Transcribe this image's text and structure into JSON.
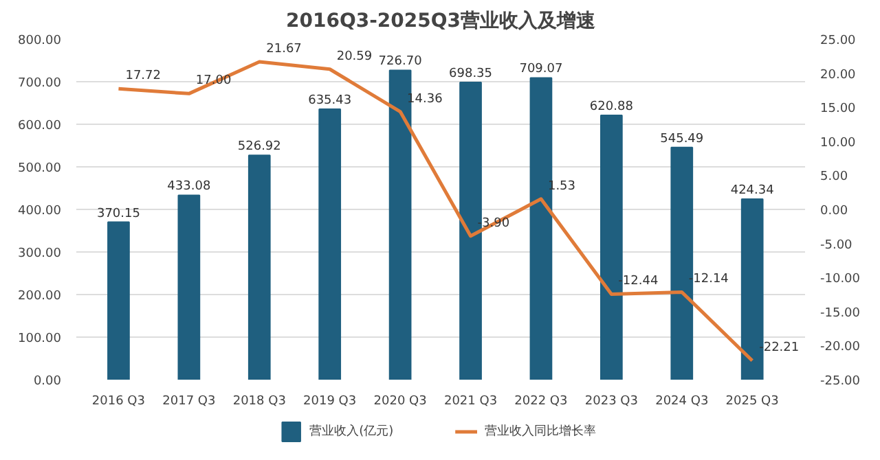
{
  "chart_data": {
    "type": "bar",
    "title": "2016Q3-2025Q3营业收入及增速",
    "categories": [
      "2016 Q3",
      "2017 Q3",
      "2018 Q3",
      "2019 Q3",
      "2020 Q3",
      "2021 Q3",
      "2022 Q3",
      "2023 Q3",
      "2024 Q3",
      "2025 Q3"
    ],
    "series": [
      {
        "name": "营业收入(亿元)",
        "color": "#1f5f7f",
        "values": [
          370.15,
          433.08,
          526.92,
          635.43,
          726.7,
          698.35,
          709.07,
          620.88,
          545.49,
          424.34
        ]
      },
      {
        "name": "营业收入同比增长率",
        "type": "line",
        "axis": "y2",
        "color": "#e07b39",
        "values": [
          17.72,
          17.0,
          21.67,
          20.59,
          14.36,
          -3.9,
          1.53,
          -12.44,
          -12.14,
          -22.21
        ]
      }
    ],
    "ylim": [
      0,
      800
    ],
    "yticks": [
      {
        "value": 0,
        "label": "0.00"
      },
      {
        "value": 100,
        "label": "100.00"
      },
      {
        "value": 200,
        "label": "200.00"
      },
      {
        "value": 300,
        "label": "300.00"
      },
      {
        "value": 400,
        "label": "400.00"
      },
      {
        "value": 500,
        "label": "500.00"
      },
      {
        "value": 600,
        "label": "600.00"
      },
      {
        "value": 700,
        "label": "700.00"
      },
      {
        "value": 800,
        "label": "800.00"
      }
    ],
    "y2lim": [
      -25,
      25
    ],
    "y2ticks": [
      {
        "value": -25,
        "label": "-25.00"
      },
      {
        "value": -20,
        "label": "-20.00"
      },
      {
        "value": -15,
        "label": "-15.00"
      },
      {
        "value": -10,
        "label": "-10.00"
      },
      {
        "value": -5,
        "label": "-5.00"
      },
      {
        "value": 0,
        "label": "0.00"
      },
      {
        "value": 5,
        "label": "5.00"
      },
      {
        "value": 10,
        "label": "10.00"
      },
      {
        "value": 15,
        "label": "15.00"
      },
      {
        "value": 20,
        "label": "20.00"
      },
      {
        "value": 25,
        "label": "25.00"
      }
    ],
    "value_labels": [
      [
        "370.15",
        "433.08",
        "526.92",
        "635.43",
        "726.70",
        "698.35",
        "709.07",
        "620.88",
        "545.49",
        "424.34"
      ],
      [
        "17.72",
        "17.00",
        "21.67",
        "20.59",
        "14.36",
        "-3.90",
        "1.53",
        "-12.44",
        "-12.14",
        "-22.21"
      ]
    ],
    "grid": "y",
    "legend": "bottom",
    "marker": "none",
    "line_style": "solid"
  }
}
